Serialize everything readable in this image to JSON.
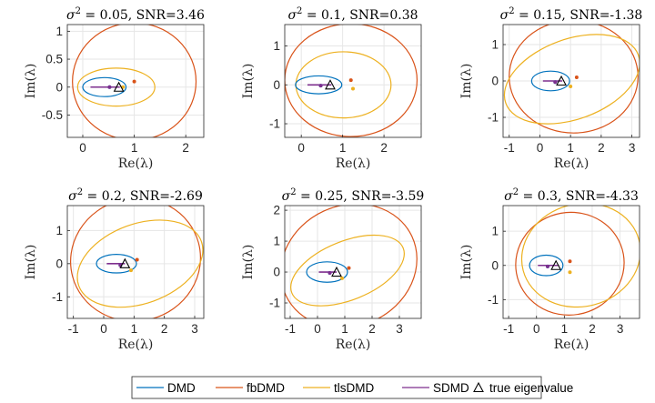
{
  "colors": {
    "DMD": "#0072BD",
    "fbDMD": "#D95319",
    "tlsDMD": "#EDB120",
    "SDMD": "#7E2F8E",
    "true": "#000000",
    "grid": "#e6e6e6",
    "axis": "#262626"
  },
  "legend": {
    "placement": "bottom-center",
    "entries": [
      {
        "label": "DMD",
        "key": "DMD",
        "marker": "line"
      },
      {
        "label": "fbDMD",
        "key": "fbDMD",
        "marker": "line"
      },
      {
        "label": "tlsDMD",
        "key": "tlsDMD",
        "marker": "line"
      },
      {
        "label": "SDMD",
        "key": "SDMD",
        "marker": "line"
      },
      {
        "label": "true eigenvalue",
        "key": "true",
        "marker": "triangle-icon"
      }
    ]
  },
  "chart_data": [
    {
      "type": "scatter",
      "title": {
        "sigma": "σ",
        "sup": "2",
        "rest": " = 0.05, SNR=3.46"
      },
      "xlabel": "Re(λ)",
      "ylabel": "Im(λ)",
      "xlim": [
        -0.3,
        2.35
      ],
      "ylim": [
        -0.9,
        1.12
      ],
      "xticks": [
        0,
        1,
        2
      ],
      "xticklabels": [
        "0",
        "1",
        "2"
      ],
      "yticks": [
        -0.5,
        0,
        0.5,
        1
      ],
      "yticklabels": [
        "-0.5",
        "0",
        "0.5",
        "1"
      ],
      "grid": true,
      "true_eigenvalue": [
        0.7,
        0.0
      ],
      "series": [
        {
          "name": "DMD",
          "center": [
            0.42,
            0.0
          ],
          "rx": 0.42,
          "ry": 0.17,
          "point": [
            0.52,
            0.0
          ]
        },
        {
          "name": "fbDMD",
          "center": [
            1.0,
            0.1
          ],
          "rx": 1.2,
          "ry": 1.05,
          "point": [
            1.0,
            0.1
          ]
        },
        {
          "name": "tlsDMD",
          "center": [
            0.65,
            0.0
          ],
          "rx": 0.75,
          "ry": 0.34,
          "point": [
            0.78,
            0.0
          ]
        },
        {
          "name": "SDMD",
          "segment": [
            [
              0.15,
              0.0
            ],
            [
              0.72,
              0.0
            ]
          ],
          "point": [
            0.52,
            0.0
          ]
        }
      ]
    },
    {
      "type": "scatter",
      "title": {
        "sigma": "σ",
        "sup": "2",
        "rest": " = 0.1, SNR=0.38"
      },
      "xlabel": "Re(λ)",
      "ylabel": "Im(λ)",
      "xlim": [
        -0.4,
        2.9
      ],
      "ylim": [
        -1.35,
        1.55
      ],
      "xticks": [
        0,
        1,
        2
      ],
      "xticklabels": [
        "0",
        "1",
        "2"
      ],
      "yticks": [
        -1,
        0,
        1
      ],
      "yticklabels": [
        "-1",
        "0",
        "1"
      ],
      "grid": true,
      "true_eigenvalue": [
        0.7,
        0.0
      ],
      "series": [
        {
          "name": "DMD",
          "center": [
            0.42,
            0.0
          ],
          "rx": 0.56,
          "ry": 0.23,
          "point": [
            0.47,
            -0.02
          ]
        },
        {
          "name": "fbDMD",
          "center": [
            1.2,
            0.12
          ],
          "rx": 1.6,
          "ry": 1.45,
          "point": [
            1.2,
            0.12
          ]
        },
        {
          "name": "tlsDMD",
          "center": [
            1.02,
            0.0
          ],
          "rx": 1.15,
          "ry": 0.85,
          "point": [
            1.25,
            -0.1
          ]
        },
        {
          "name": "SDMD",
          "segment": [
            [
              0.15,
              0.0
            ],
            [
              0.73,
              0.0
            ]
          ],
          "point": [
            0.47,
            -0.02
          ]
        }
      ]
    },
    {
      "type": "scatter",
      "title": {
        "sigma": "σ",
        "sup": "2",
        "rest": " = 0.15, SNR=-1.38"
      },
      "xlabel": "Re(λ)",
      "ylabel": "Im(λ)",
      "xlim": [
        -1.2,
        3.25
      ],
      "ylim": [
        -1.55,
        1.55
      ],
      "xticks": [
        -1,
        0,
        1,
        2,
        3
      ],
      "xticklabels": [
        "-1",
        "0",
        "1",
        "2",
        "3"
      ],
      "yticks": [
        -1,
        0,
        1
      ],
      "yticklabels": [
        "-1",
        "0",
        "1"
      ],
      "grid": true,
      "true_eigenvalue": [
        0.7,
        0.0
      ],
      "series": [
        {
          "name": "DMD",
          "center": [
            0.35,
            0.0
          ],
          "rx": 0.62,
          "ry": 0.27,
          "point": [
            0.5,
            -0.03
          ]
        },
        {
          "name": "fbDMD",
          "center": [
            1.1,
            0.12
          ],
          "rx": 2.1,
          "ry": 1.55,
          "point": [
            1.2,
            0.1
          ]
        },
        {
          "name": "tlsDMD",
          "center": [
            1.05,
            0.05
          ],
          "rx": 2.3,
          "ry": 1.1,
          "rotate_deg": 20,
          "point": [
            1.0,
            -0.15
          ]
        },
        {
          "name": "SDMD",
          "segment": [
            [
              0.1,
              0.0
            ],
            [
              0.73,
              0.0
            ]
          ],
          "point": [
            0.5,
            -0.03
          ]
        }
      ]
    },
    {
      "type": "scatter",
      "title": {
        "sigma": "σ",
        "sup": "2",
        "rest": " = 0.2, SNR=-2.69"
      },
      "xlabel": "Re(λ)",
      "ylabel": "Im(λ)",
      "xlim": [
        -1.2,
        3.3
      ],
      "ylim": [
        -1.65,
        1.75
      ],
      "xticks": [
        -1,
        0,
        1,
        2,
        3
      ],
      "xticklabels": [
        "-1",
        "0",
        "1",
        "2",
        "3"
      ],
      "yticks": [
        -1,
        0,
        1
      ],
      "yticklabels": [
        "-1",
        "0",
        "1"
      ],
      "grid": true,
      "true_eigenvalue": [
        0.7,
        0.0
      ],
      "series": [
        {
          "name": "DMD",
          "center": [
            0.42,
            0.0
          ],
          "rx": 0.66,
          "ry": 0.28,
          "point": [
            0.55,
            -0.05
          ]
        },
        {
          "name": "fbDMD",
          "center": [
            1.05,
            0.12
          ],
          "rx": 2.15,
          "ry": 1.85,
          "rotate_deg": 15,
          "point": [
            1.1,
            0.12
          ]
        },
        {
          "name": "tlsDMD",
          "center": [
            1.2,
            0.0
          ],
          "rx": 2.15,
          "ry": 1.2,
          "rotate_deg": 20,
          "point": [
            0.9,
            -0.2
          ]
        },
        {
          "name": "SDMD",
          "segment": [
            [
              0.1,
              0.0
            ],
            [
              0.7,
              0.0
            ]
          ],
          "point": [
            0.55,
            -0.05
          ]
        }
      ]
    },
    {
      "type": "scatter",
      "title": {
        "sigma": "σ",
        "sup": "2",
        "rest": " = 0.25, SNR=-3.59"
      },
      "xlabel": "Re(λ)",
      "ylabel": "Im(λ)",
      "xlim": [
        -1.2,
        3.8
      ],
      "ylim": [
        -1.5,
        2.15
      ],
      "xticks": [
        -1,
        0,
        1,
        2,
        3
      ],
      "xticklabels": [
        "-1",
        "0",
        "1",
        "2",
        "3"
      ],
      "yticks": [
        -1,
        0,
        1,
        2
      ],
      "yticklabels": [
        "-1",
        "0",
        "1",
        "2"
      ],
      "grid": true,
      "true_eigenvalue": [
        0.7,
        0.0
      ],
      "series": [
        {
          "name": "DMD",
          "center": [
            0.35,
            0.0
          ],
          "rx": 0.75,
          "ry": 0.33,
          "point": [
            0.45,
            -0.03
          ]
        },
        {
          "name": "fbDMD",
          "center": [
            1.15,
            0.2
          ],
          "rx": 2.55,
          "ry": 1.95,
          "rotate_deg": 25,
          "point": [
            1.15,
            0.13
          ]
        },
        {
          "name": "tlsDMD",
          "center": [
            1.1,
            0.05
          ],
          "rx": 2.2,
          "ry": 0.95,
          "rotate_deg": 22,
          "point": [
            0.9,
            -0.2
          ]
        },
        {
          "name": "SDMD",
          "segment": [
            [
              0.05,
              0.0
            ],
            [
              0.7,
              0.0
            ]
          ],
          "point": [
            0.45,
            -0.03
          ]
        }
      ]
    },
    {
      "type": "scatter",
      "title": {
        "sigma": "σ",
        "sup": "2",
        "rest": " = 0.3, SNR=-4.33"
      },
      "xlabel": "Re(λ)",
      "ylabel": "Im(λ)",
      "xlim": [
        -1.2,
        3.7
      ],
      "ylim": [
        -1.55,
        1.75
      ],
      "xticks": [
        -1,
        0,
        1,
        2,
        3
      ],
      "xticklabels": [
        "-1",
        "0",
        "1",
        "2",
        "3"
      ],
      "yticks": [
        -1,
        0,
        1
      ],
      "yticklabels": [
        "-1",
        "0",
        "1"
      ],
      "grid": true,
      "true_eigenvalue": [
        0.7,
        0.0
      ],
      "series": [
        {
          "name": "DMD",
          "center": [
            0.35,
            0.0
          ],
          "rx": 0.6,
          "ry": 0.3,
          "point": [
            0.4,
            -0.03
          ]
        },
        {
          "name": "fbDMD",
          "center": [
            1.2,
            0.05
          ],
          "rx": 1.95,
          "ry": 1.5,
          "rotate_deg": 10,
          "point": [
            1.2,
            0.12
          ]
        },
        {
          "name": "tlsDMD",
          "center": [
            1.6,
            0.3
          ],
          "rx": 2.15,
          "ry": 1.5,
          "rotate_deg": 15,
          "point": [
            1.2,
            -0.2
          ]
        },
        {
          "name": "SDMD",
          "segment": [
            [
              0.05,
              0.0
            ],
            [
              0.8,
              0.0
            ]
          ],
          "point": [
            0.4,
            -0.03
          ]
        }
      ]
    }
  ]
}
